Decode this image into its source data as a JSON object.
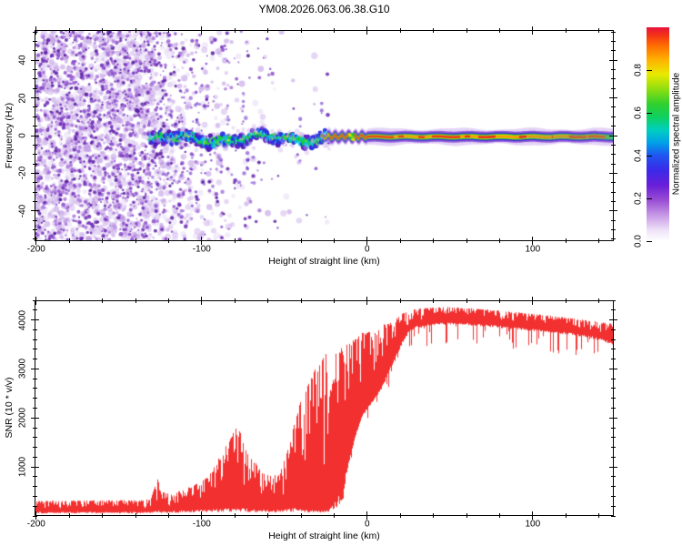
{
  "title": "YM08.2026.063.06.38.G10",
  "chart_data": [
    {
      "id": "spectrogram",
      "type": "heatmap",
      "title": "",
      "xlabel": "Height of straight line (km)",
      "ylabel": "Frequency (Hz)",
      "xlim": [
        -201,
        149
      ],
      "ylim": [
        -56,
        56
      ],
      "grid": "off",
      "x_ticks": {
        "values": [
          -200,
          -100,
          0,
          100
        ],
        "labels": [
          "-200",
          "-100",
          "0",
          "100"
        ],
        "minor_step": 20
      },
      "y_ticks": {
        "values": [
          40,
          20,
          0,
          -20,
          -40
        ],
        "labels": [
          "40",
          "20",
          "0",
          "-20",
          "-40"
        ],
        "minor_step": 5
      },
      "noise_field": {
        "comment": "broadband speckle noise filling all frequencies at far-left heights, fading toward 0 km",
        "x_range": [
          -201,
          -18
        ],
        "density_profile": [
          [
            -201,
            1.0
          ],
          [
            -133,
            1.0
          ],
          [
            -120,
            0.5
          ],
          [
            -105,
            0.28
          ],
          [
            -90,
            0.16
          ],
          [
            -75,
            0.09
          ],
          [
            -55,
            0.045
          ],
          [
            -35,
            0.018
          ],
          [
            -22,
            0.006
          ],
          [
            -18,
            0
          ]
        ],
        "palette_pale": [
          "#e6d9f6",
          "#cdb0ec",
          "#b68ae0"
        ],
        "palette_dark": [
          "#a976da",
          "#8a4bcb",
          "#6b28b4",
          "#54199c"
        ]
      },
      "meteor_band": {
        "comment": "wiggly noisy echo band near 0 Hz between -132 and -23 km",
        "x_range": [
          -132,
          -23
        ],
        "center_hz": -2.2,
        "sigma_hz": 2.4,
        "colors": {
          "yellow": "#d6e800",
          "green": "#18cf35",
          "cyan": "#00c2e6",
          "blue": "#2b2fe2",
          "purple": "#5a1cc2",
          "dark_purple": "#4c14b0",
          "fringe": "#cdb0ec"
        }
      },
      "echo_stripe": {
        "comment": "narrow intense echo line near 0 Hz from -29 km to right edge",
        "x_range": [
          -29,
          149
        ],
        "center_hz": -0.6,
        "layers": [
          [
            8.5,
            "#dcc6f4",
            0.6
          ],
          [
            6,
            "#8a4fd6",
            0.85
          ],
          [
            4.3,
            "#3a2ae0",
            1
          ],
          [
            3,
            "#2fcf2f",
            1
          ],
          [
            1.9,
            "#e8e400",
            1
          ],
          [
            1.2,
            "#ff9400",
            1
          ]
        ],
        "core_color": "#ee1c1c",
        "end_cap_color": "#00d890"
      },
      "colorbar": {
        "label": "Normalized spectral amplitude",
        "range": [
          0,
          1
        ],
        "ticks": {
          "values": [
            0,
            0.2,
            0.4,
            0.6,
            0.8
          ],
          "labels": [
            "0.0",
            "0.2",
            "0.4",
            "0.6",
            "0.8"
          ]
        },
        "gradient": [
          [
            0,
            "#ffffff"
          ],
          [
            0.05,
            "#efe3f8"
          ],
          [
            0.12,
            "#c89ae6"
          ],
          [
            0.19,
            "#9a4fd4"
          ],
          [
            0.26,
            "#6a1fd8"
          ],
          [
            0.33,
            "#3b28e8"
          ],
          [
            0.4,
            "#1f55f0"
          ],
          [
            0.46,
            "#00a0e8"
          ],
          [
            0.52,
            "#00cfc0"
          ],
          [
            0.58,
            "#0fd060"
          ],
          [
            0.64,
            "#2fd02f"
          ],
          [
            0.71,
            "#8ede10"
          ],
          [
            0.78,
            "#e8ea00"
          ],
          [
            0.85,
            "#ffb000"
          ],
          [
            0.91,
            "#ff7100"
          ],
          [
            0.96,
            "#f43614"
          ],
          [
            1,
            "#e8123c"
          ]
        ]
      }
    },
    {
      "id": "snr",
      "type": "line",
      "title": "",
      "xlabel": "Height of straight line (km)",
      "ylabel": "SNR (10 * v/v)",
      "xlim": [
        -201,
        149
      ],
      "ylim": [
        0,
        4400
      ],
      "grid": "off",
      "line_color": "#f23030",
      "x_ticks": {
        "values": [
          -200,
          -100,
          0,
          100
        ],
        "labels": [
          "-200",
          "-100",
          "0",
          "100"
        ],
        "minor_step": 20
      },
      "y_ticks": {
        "values": [
          1000,
          2000,
          3000,
          4000
        ],
        "labels": [
          "1000",
          "2000",
          "3000",
          "4000"
        ],
        "minor_step": 200
      },
      "envelope_points": [
        [
          -201,
          70,
          290
        ],
        [
          -170,
          70,
          300
        ],
        [
          -140,
          70,
          310
        ],
        [
          -131,
          80,
          330
        ],
        [
          -127,
          120,
          760
        ],
        [
          -124,
          90,
          480
        ],
        [
          -118,
          90,
          420
        ],
        [
          -112,
          100,
          520
        ],
        [
          -106,
          110,
          600
        ],
        [
          -100,
          120,
          700
        ],
        [
          -94,
          130,
          900
        ],
        [
          -88,
          140,
          1300
        ],
        [
          -83,
          140,
          1600
        ],
        [
          -78,
          160,
          1900
        ],
        [
          -73,
          140,
          1300
        ],
        [
          -68,
          120,
          1100
        ],
        [
          -63,
          110,
          900
        ],
        [
          -57,
          110,
          780
        ],
        [
          -52,
          120,
          950
        ],
        [
          -47,
          150,
          1500
        ],
        [
          -43,
          150,
          2100
        ],
        [
          -39,
          130,
          2500
        ],
        [
          -35,
          110,
          2800
        ],
        [
          -31,
          100,
          3050
        ],
        [
          -27,
          100,
          3250
        ],
        [
          -23,
          130,
          3400
        ],
        [
          -19,
          300,
          3350
        ],
        [
          -15,
          550,
          3450
        ],
        [
          -11,
          1100,
          3550
        ],
        [
          -7,
          1650,
          3650
        ],
        [
          -3,
          2050,
          3750
        ],
        [
          1,
          2250,
          3800
        ],
        [
          5,
          2450,
          3850
        ],
        [
          9,
          2650,
          3900
        ],
        [
          13,
          2950,
          3980
        ],
        [
          17,
          3250,
          4060
        ],
        [
          21,
          3550,
          4140
        ],
        [
          25,
          3780,
          4200
        ],
        [
          30,
          3900,
          4250
        ],
        [
          38,
          3950,
          4270
        ],
        [
          50,
          3960,
          4280
        ],
        [
          62,
          3950,
          4260
        ],
        [
          74,
          3920,
          4230
        ],
        [
          86,
          3880,
          4190
        ],
        [
          98,
          3840,
          4150
        ],
        [
          110,
          3800,
          4110
        ],
        [
          122,
          3760,
          4060
        ],
        [
          134,
          3700,
          4010
        ],
        [
          142,
          3630,
          3970
        ],
        [
          149,
          3550,
          3940
        ]
      ]
    }
  ]
}
